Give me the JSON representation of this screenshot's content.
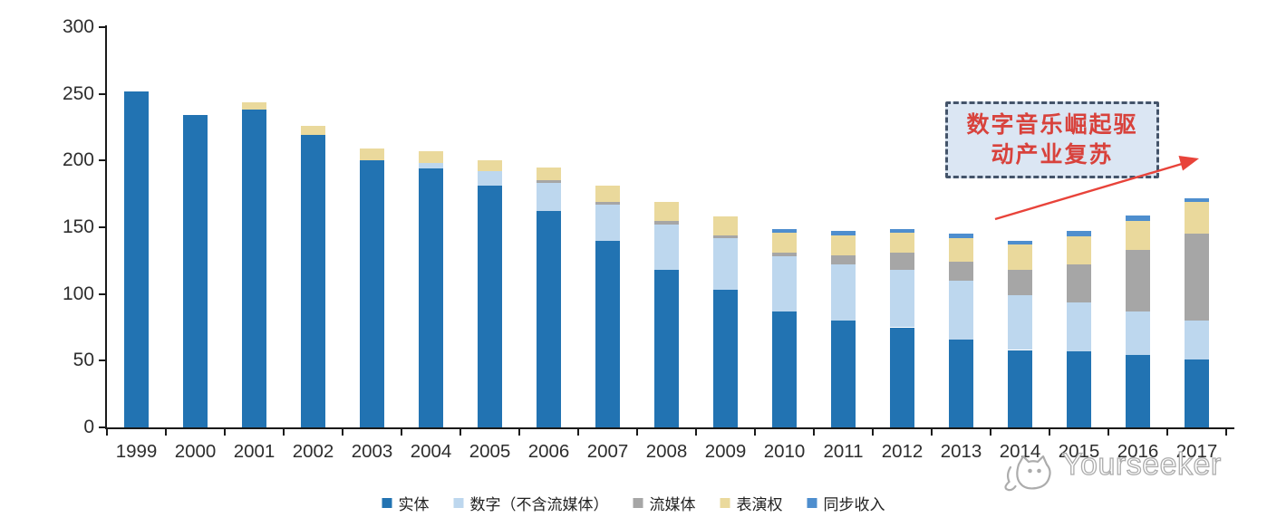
{
  "chart_data": {
    "type": "bar",
    "stacked": true,
    "title": "",
    "categories": [
      "1999",
      "2000",
      "2001",
      "2002",
      "2003",
      "2004",
      "2005",
      "2006",
      "2007",
      "2008",
      "2009",
      "2010",
      "2011",
      "2012",
      "2013",
      "2014",
      "2015",
      "2016",
      "2017"
    ],
    "series": [
      {
        "key": "physical",
        "name": "实体",
        "color": "#2273b2",
        "values": [
          252,
          234,
          238,
          219,
          200,
          194,
          181,
          162,
          140,
          118,
          103,
          87,
          80,
          75,
          66,
          58,
          57,
          54,
          51
        ]
      },
      {
        "key": "digital-excl-streaming",
        "name": "数字（不含流媒体）",
        "color": "#bdd7ee",
        "values": [
          0,
          0,
          0,
          0,
          0,
          4,
          11,
          21,
          27,
          34,
          39,
          41,
          42,
          43,
          44,
          41,
          37,
          33,
          29
        ]
      },
      {
        "key": "streaming",
        "name": "流媒体",
        "color": "#a6a6a6",
        "values": [
          0,
          0,
          0,
          0,
          0,
          0,
          0,
          2,
          2,
          3,
          2,
          3,
          7,
          13,
          14,
          19,
          28,
          46,
          65
        ]
      },
      {
        "key": "performance-rights",
        "name": "表演权",
        "color": "#ead99c",
        "values": [
          0,
          0,
          6,
          7,
          9,
          9,
          8,
          10,
          12,
          14,
          14,
          15,
          15,
          15,
          18,
          19,
          21,
          22,
          24
        ]
      },
      {
        "key": "sync-revenue",
        "name": "同步收入",
        "color": "#4e8ece",
        "values": [
          0,
          0,
          0,
          0,
          0,
          0,
          0,
          0,
          0,
          0,
          0,
          3,
          3,
          3,
          3,
          3,
          4,
          4,
          3
        ]
      }
    ],
    "ylim": [
      0,
      300
    ],
    "yticks": [
      0,
      50,
      100,
      150,
      200,
      250,
      300
    ],
    "grid": false,
    "legend_position": "bottom"
  },
  "annotation": {
    "line1": "数字音乐崛起驱",
    "line2": "动产业复苏"
  },
  "watermark": {
    "brand": "Yourseeker",
    "logo": "cat-chat-bubble-icon"
  }
}
